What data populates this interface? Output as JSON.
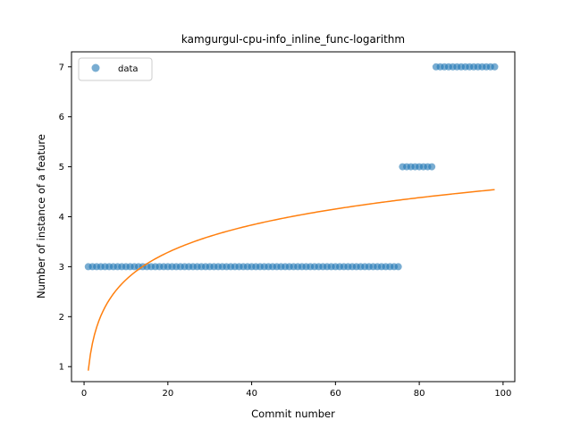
{
  "chart_data": {
    "type": "scatter",
    "title": "kamgurgul-cpu-info_inline_func-logarithm",
    "xlabel": "Commit number",
    "ylabel": "Number of instance of a feature",
    "xlim": [
      -3,
      102.8
    ],
    "ylim": [
      0.7,
      7.3
    ],
    "xticks": [
      0,
      20,
      40,
      60,
      80,
      100
    ],
    "yticks": [
      1,
      2,
      3,
      4,
      5,
      6,
      7
    ],
    "grid": false,
    "legend": {
      "position": "top-left",
      "entries": [
        "data"
      ]
    },
    "colors": {
      "data": "#1f77b4",
      "fit": "#ff7f0e"
    },
    "series": [
      {
        "name": "data",
        "kind": "scatter",
        "points": [
          [
            1,
            3
          ],
          [
            2,
            3
          ],
          [
            3,
            3
          ],
          [
            4,
            3
          ],
          [
            5,
            3
          ],
          [
            6,
            3
          ],
          [
            7,
            3
          ],
          [
            8,
            3
          ],
          [
            9,
            3
          ],
          [
            10,
            3
          ],
          [
            11,
            3
          ],
          [
            12,
            3
          ],
          [
            13,
            3
          ],
          [
            14,
            3
          ],
          [
            15,
            3
          ],
          [
            16,
            3
          ],
          [
            17,
            3
          ],
          [
            18,
            3
          ],
          [
            19,
            3
          ],
          [
            20,
            3
          ],
          [
            21,
            3
          ],
          [
            22,
            3
          ],
          [
            23,
            3
          ],
          [
            24,
            3
          ],
          [
            25,
            3
          ],
          [
            26,
            3
          ],
          [
            27,
            3
          ],
          [
            28,
            3
          ],
          [
            29,
            3
          ],
          [
            30,
            3
          ],
          [
            31,
            3
          ],
          [
            32,
            3
          ],
          [
            33,
            3
          ],
          [
            34,
            3
          ],
          [
            35,
            3
          ],
          [
            36,
            3
          ],
          [
            37,
            3
          ],
          [
            38,
            3
          ],
          [
            39,
            3
          ],
          [
            40,
            3
          ],
          [
            41,
            3
          ],
          [
            42,
            3
          ],
          [
            43,
            3
          ],
          [
            44,
            3
          ],
          [
            45,
            3
          ],
          [
            46,
            3
          ],
          [
            47,
            3
          ],
          [
            48,
            3
          ],
          [
            49,
            3
          ],
          [
            50,
            3
          ],
          [
            51,
            3
          ],
          [
            52,
            3
          ],
          [
            53,
            3
          ],
          [
            54,
            3
          ],
          [
            55,
            3
          ],
          [
            56,
            3
          ],
          [
            57,
            3
          ],
          [
            58,
            3
          ],
          [
            59,
            3
          ],
          [
            60,
            3
          ],
          [
            61,
            3
          ],
          [
            62,
            3
          ],
          [
            63,
            3
          ],
          [
            64,
            3
          ],
          [
            65,
            3
          ],
          [
            66,
            3
          ],
          [
            67,
            3
          ],
          [
            68,
            3
          ],
          [
            69,
            3
          ],
          [
            70,
            3
          ],
          [
            71,
            3
          ],
          [
            72,
            3
          ],
          [
            73,
            3
          ],
          [
            74,
            3
          ],
          [
            75,
            3
          ],
          [
            76,
            5
          ],
          [
            77,
            5
          ],
          [
            78,
            5
          ],
          [
            79,
            5
          ],
          [
            80,
            5
          ],
          [
            81,
            5
          ],
          [
            82,
            5
          ],
          [
            83,
            5
          ],
          [
            84,
            7
          ],
          [
            85,
            7
          ],
          [
            86,
            7
          ],
          [
            87,
            7
          ],
          [
            88,
            7
          ],
          [
            89,
            7
          ],
          [
            90,
            7
          ],
          [
            91,
            7
          ],
          [
            92,
            7
          ],
          [
            93,
            7
          ],
          [
            94,
            7
          ],
          [
            95,
            7
          ],
          [
            96,
            7
          ],
          [
            97,
            7
          ],
          [
            98,
            7
          ]
        ]
      },
      {
        "name": "",
        "kind": "line",
        "model": "log",
        "coefficients": {
          "a": 0.92,
          "b": 0.79
        },
        "x_range": [
          1,
          98
        ]
      }
    ]
  }
}
